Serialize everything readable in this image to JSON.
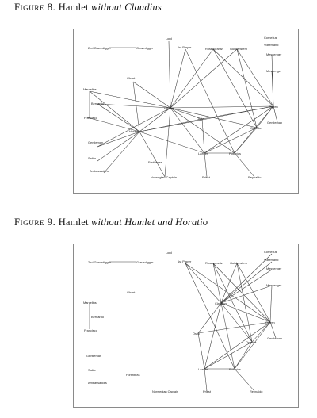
{
  "figures": [
    {
      "label": "Figure 8.",
      "title_plain": "Hamlet",
      "title_italic": "without Claudius",
      "nodes": {
        "lord": "Lord",
        "cornelius": "Cornelius",
        "voltemand": "Voltemand",
        "gravedigger2": "2nd Gravedigger",
        "gravedigger": "Gravedigger",
        "player1": "1st Player",
        "rosencrantz": "Rosencrantz",
        "guildenstern": "Guildenstern",
        "messenger1": "Messenger",
        "messenger2": "Messenger",
        "ghost": "Ghost",
        "marcellus": "Marcellus",
        "bernardo": "Bernardo",
        "francisco": "Francisco",
        "hamlet": "Hamlet",
        "queen": "Queen",
        "gentleman1": "Gentleman",
        "osric": "Osric",
        "ophelia": "Ophelia",
        "horatio": "Horatio",
        "gentleman2": "Gentleman",
        "sailor": "Sailor",
        "ambassadors": "Ambassadors",
        "fortinbras": "Fortinbras",
        "laertes": "Laertes",
        "polonius": "Polonius",
        "captain": "Norwegian Captain",
        "priest": "Priest",
        "reynaldo": "Reynaldo"
      }
    },
    {
      "label": "Figure 9.",
      "title_plain": "Hamlet",
      "title_italic": "without Hamlet and Horatio",
      "nodes": {
        "lord": "Lord",
        "cornelius": "Cornelius",
        "voltemand": "Voltemand",
        "gravedigger2": "2nd Gravedigger",
        "gravedigger": "Gravedigger",
        "player1": "1st Player",
        "rosencrantz": "Rosencrantz",
        "guildenstern": "Guildenstern",
        "messenger1": "Messenger",
        "messenger2": "Messenger",
        "ghost": "Ghost",
        "claudius": "Claudius",
        "marcellus": "Marcellus",
        "bernardo": "Bernardo",
        "francisco": "Francisco",
        "queen": "Queen",
        "osric": "Osric",
        "gentleman1": "Gentleman",
        "ophelia": "Ophelia",
        "gentleman2": "Gentleman",
        "sailor": "Sailor",
        "fortinbras": "Fortinbras",
        "ambassadors": "Ambassadors",
        "laertes": "Laertes",
        "polonius": "Polonius",
        "captain": "Norwegian Captain",
        "priest": "Priest",
        "reynaldo": "Reynaldo"
      }
    }
  ]
}
